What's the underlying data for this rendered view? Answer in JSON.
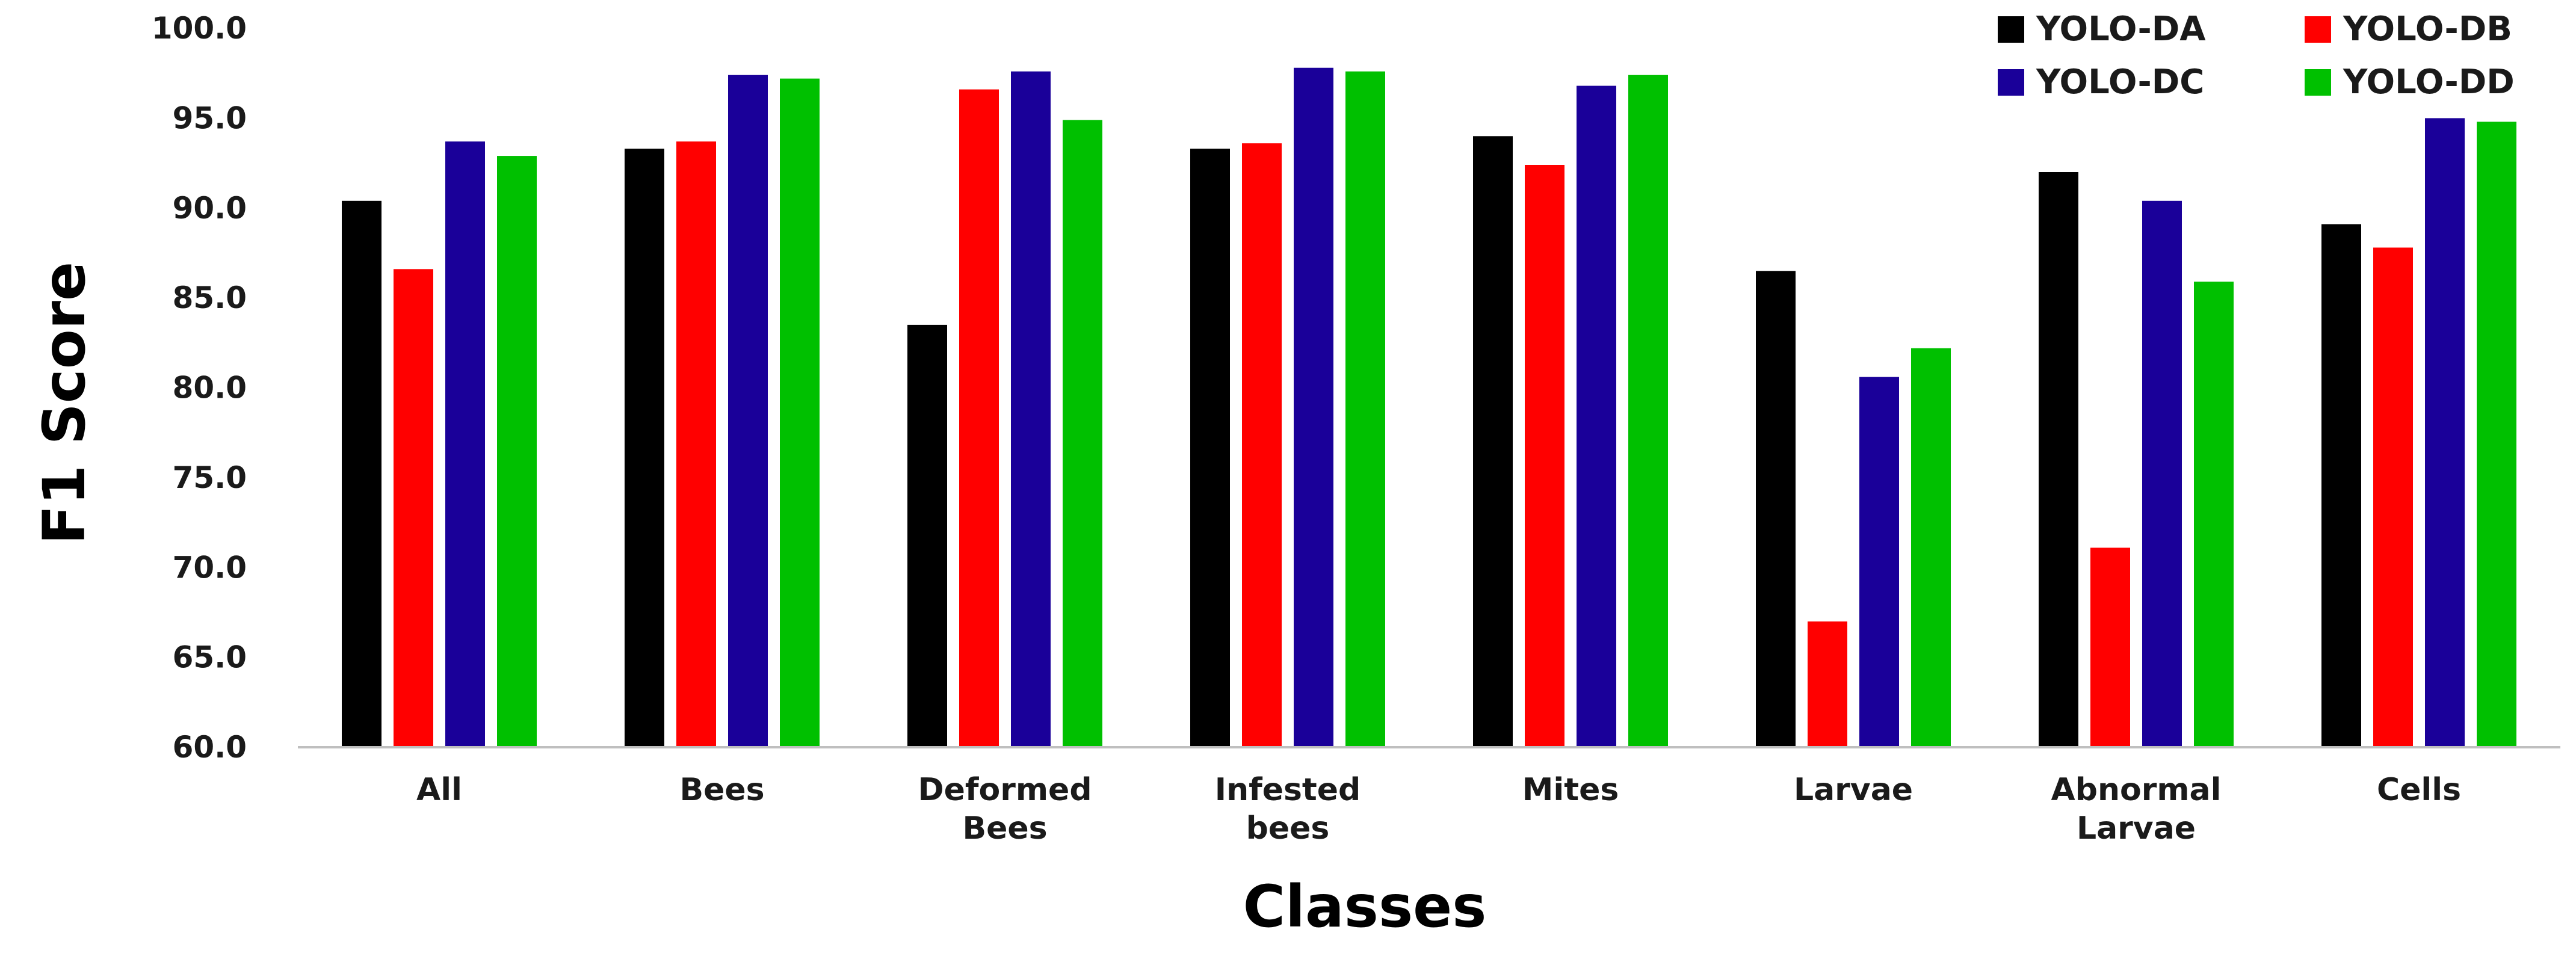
{
  "chart_data": {
    "type": "bar",
    "title": "",
    "xlabel": "Classes",
    "ylabel": "F1 Score",
    "ylim": [
      60,
      100
    ],
    "y_ticks": [
      "60.0",
      "65.0",
      "70.0",
      "75.0",
      "80.0",
      "85.0",
      "90.0",
      "95.0",
      "100.0"
    ],
    "grid": false,
    "legend_position": "top-right",
    "categories": [
      [
        "All"
      ],
      [
        "Bees"
      ],
      [
        "Deformed",
        "Bees"
      ],
      [
        "Infested",
        "bees"
      ],
      [
        "Mites"
      ],
      [
        "Larvae"
      ],
      [
        "Abnormal",
        "Larvae"
      ],
      [
        "Cells"
      ]
    ],
    "series": [
      {
        "name": "YOLO-DA",
        "color": "#000000",
        "values": [
          90.4,
          93.3,
          83.5,
          93.3,
          94.0,
          86.5,
          92.0,
          89.1
        ]
      },
      {
        "name": "YOLO-DB",
        "color": "#ff0000",
        "values": [
          86.6,
          93.7,
          96.6,
          93.6,
          92.4,
          67.0,
          71.1,
          87.8
        ]
      },
      {
        "name": "YOLO-DC",
        "color": "#1a0099",
        "values": [
          93.7,
          97.4,
          97.6,
          97.8,
          96.8,
          80.6,
          90.4,
          95.0
        ]
      },
      {
        "name": "YOLO-DD",
        "color": "#00c000",
        "values": [
          92.9,
          97.2,
          94.9,
          97.6,
          97.4,
          82.2,
          85.9,
          94.8
        ]
      }
    ]
  }
}
